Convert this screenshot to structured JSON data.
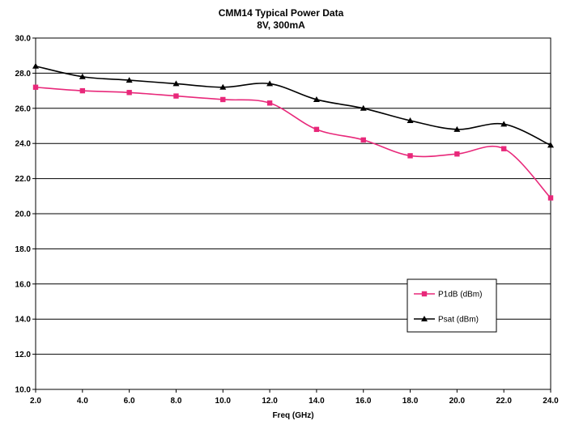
{
  "chart_data": {
    "type": "line",
    "title": "CMM14 Typical Power Data",
    "subtitle": "8V, 300mA",
    "xlabel": "Freq (GHz)",
    "ylabel": "",
    "xlim": [
      2.0,
      24.0
    ],
    "ylim": [
      10.0,
      30.0
    ],
    "x_ticks": [
      "2.0",
      "4.0",
      "6.0",
      "8.0",
      "10.0",
      "12.0",
      "14.0",
      "16.0",
      "18.0",
      "20.0",
      "22.0",
      "24.0"
    ],
    "y_ticks": [
      "10.0",
      "12.0",
      "14.0",
      "16.0",
      "18.0",
      "20.0",
      "22.0",
      "24.0",
      "26.0",
      "28.0",
      "30.0"
    ],
    "grid": "horizontal",
    "legend_position": "lower-right",
    "x": [
      2,
      4,
      6,
      8,
      10,
      12,
      14,
      16,
      18,
      20,
      22,
      24
    ],
    "series": [
      {
        "name": "P1dB (dBm)",
        "color": "#e8287a",
        "marker": "square",
        "values": [
          27.2,
          27.0,
          26.9,
          26.7,
          26.5,
          26.3,
          24.8,
          24.2,
          23.3,
          23.4,
          23.7,
          20.9
        ]
      },
      {
        "name": "Psat (dBm)",
        "color": "#000000",
        "marker": "triangle",
        "values": [
          28.4,
          27.8,
          27.6,
          27.4,
          27.2,
          27.4,
          26.5,
          26.0,
          25.3,
          24.8,
          25.1,
          23.9
        ]
      }
    ]
  }
}
